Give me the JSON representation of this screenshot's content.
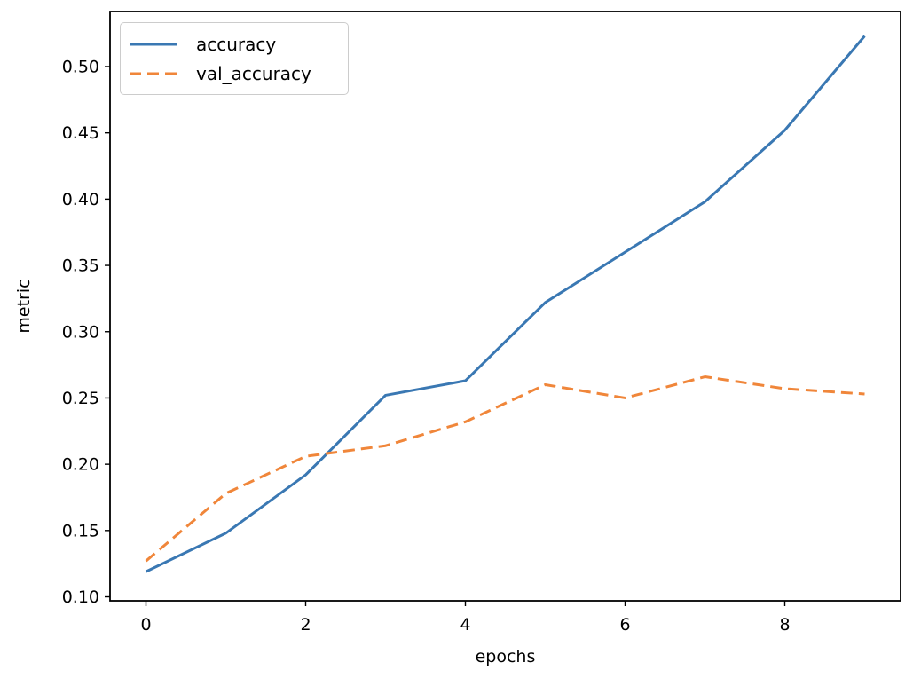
{
  "chart_data": {
    "type": "line",
    "x": [
      0,
      1,
      2,
      3,
      4,
      5,
      6,
      7,
      8,
      9
    ],
    "series": [
      {
        "name": "accuracy",
        "color": "#3a78b3",
        "style": "solid",
        "values": [
          0.119,
          0.148,
          0.192,
          0.252,
          0.263,
          0.322,
          0.36,
          0.398,
          0.452,
          0.523
        ]
      },
      {
        "name": "val_accuracy",
        "color": "#f0863a",
        "style": "dashed",
        "values": [
          0.127,
          0.178,
          0.206,
          0.214,
          0.232,
          0.26,
          0.25,
          0.266,
          0.257,
          0.253
        ]
      }
    ],
    "title": "",
    "xlabel": "epochs",
    "ylabel": "metric",
    "xticks": [
      {
        "value": 0,
        "label": "0"
      },
      {
        "value": 2,
        "label": "2"
      },
      {
        "value": 4,
        "label": "4"
      },
      {
        "value": 6,
        "label": "6"
      },
      {
        "value": 8,
        "label": "8"
      }
    ],
    "yticks": [
      {
        "value": 0.1,
        "label": "0.10"
      },
      {
        "value": 0.15,
        "label": "0.15"
      },
      {
        "value": 0.2,
        "label": "0.20"
      },
      {
        "value": 0.25,
        "label": "0.25"
      },
      {
        "value": 0.3,
        "label": "0.30"
      },
      {
        "value": 0.35,
        "label": "0.35"
      },
      {
        "value": 0.4,
        "label": "0.40"
      },
      {
        "value": 0.45,
        "label": "0.45"
      },
      {
        "value": 0.5,
        "label": "0.50"
      }
    ],
    "xlim": [
      -0.45,
      9.45
    ],
    "ylim": [
      0.097,
      0.5415
    ],
    "grid": false,
    "legend": {
      "position": "upper-left",
      "entries": [
        "accuracy",
        "val_accuracy"
      ]
    }
  },
  "colors": {
    "background": "#ffffff",
    "spine": "#000000",
    "tick": "#000000",
    "tick_label": "#000000",
    "legend_border": "#cccccc"
  }
}
